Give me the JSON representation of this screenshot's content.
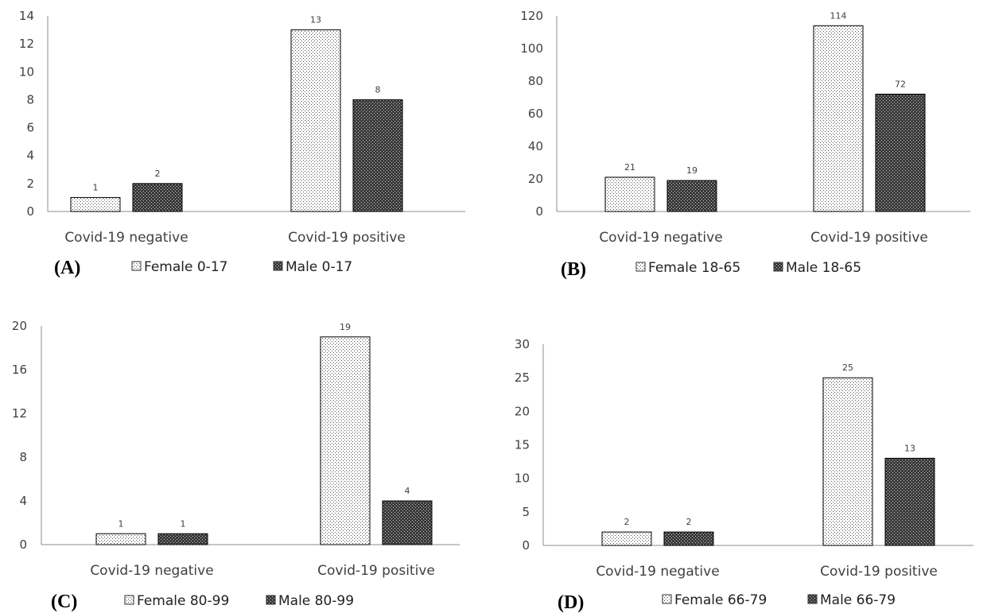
{
  "chart_data": [
    {
      "panel": "(A)",
      "type": "bar",
      "categories": [
        "Covid-19 negative",
        "Covid-19 positive"
      ],
      "series": [
        {
          "name": "Female 0-17",
          "values": [
            1,
            13
          ]
        },
        {
          "name": "Male 0-17",
          "values": [
            2,
            8
          ]
        }
      ],
      "ylim": [
        0,
        14
      ],
      "yticks": [
        "0",
        "2",
        "4",
        "6",
        "8",
        "10",
        "12",
        "14"
      ],
      "legend_position": "bottom",
      "grid": false
    },
    {
      "panel": "(B)",
      "type": "bar",
      "categories": [
        "Covid-19 negative",
        "Covid-19 positive"
      ],
      "series": [
        {
          "name": "Female 18-65",
          "values": [
            21,
            114
          ]
        },
        {
          "name": "Male 18-65",
          "values": [
            19,
            72
          ]
        }
      ],
      "ylim": [
        0,
        120
      ],
      "yticks": [
        "0",
        "20",
        "40",
        "60",
        "80",
        "100",
        "120"
      ],
      "legend_position": "bottom",
      "grid": false
    },
    {
      "panel": "(C)",
      "type": "bar",
      "categories": [
        "Covid-19 negative",
        "Covid-19 positive"
      ],
      "series": [
        {
          "name": "Female 80-99",
          "values": [
            1,
            19
          ]
        },
        {
          "name": "Male 80-99",
          "values": [
            1,
            4
          ]
        }
      ],
      "ylim": [
        0,
        20
      ],
      "yticks": [
        "0",
        "4",
        "8",
        "12",
        "16",
        "20"
      ],
      "legend_position": "bottom",
      "grid": false
    },
    {
      "panel": "(D)",
      "type": "bar",
      "categories": [
        "Covid-19 negative",
        "Covid-19 positive"
      ],
      "series": [
        {
          "name": "Female 66-79",
          "values": [
            2,
            25
          ]
        },
        {
          "name": "Male 66-79",
          "values": [
            2,
            13
          ]
        }
      ],
      "ylim": [
        0,
        30
      ],
      "yticks": [
        "0",
        "5",
        "10",
        "15",
        "20",
        "25",
        "30"
      ],
      "legend_position": "bottom",
      "grid": false
    }
  ]
}
